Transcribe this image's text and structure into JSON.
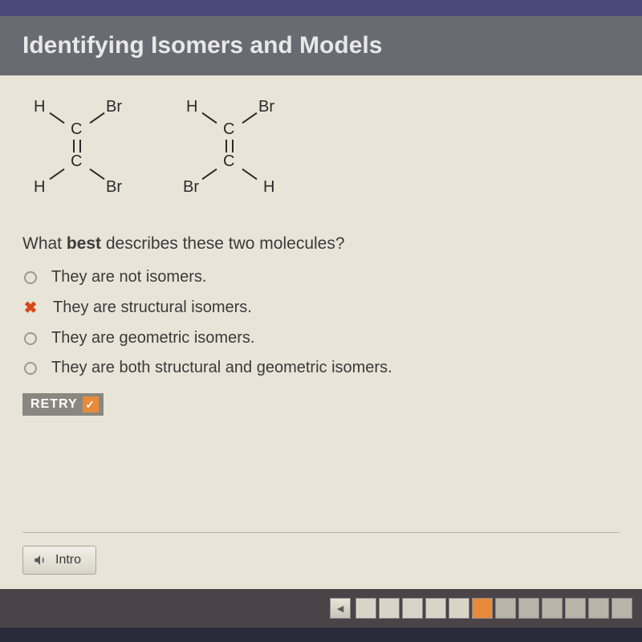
{
  "header": {
    "title": "Identifying Isomers and Models"
  },
  "molecules": [
    {
      "top_left": "H",
      "top_right": "Br",
      "c_top": "C",
      "c_bottom": "C",
      "bottom_left": "H",
      "bottom_right": "Br"
    },
    {
      "top_left": "H",
      "top_right": "Br",
      "c_top": "C",
      "c_bottom": "C",
      "bottom_left": "Br",
      "bottom_right": "H"
    }
  ],
  "question": {
    "prefix": "What ",
    "bold": "best",
    "suffix": " describes these two molecules?"
  },
  "options": [
    {
      "text": "They are not isomers.",
      "state": "unselected"
    },
    {
      "text": "They are structural isomers.",
      "state": "wrong"
    },
    {
      "text": "They are geometric isomers.",
      "state": "unselected"
    },
    {
      "text": "They are both structural and geometric isomers.",
      "state": "unselected"
    }
  ],
  "retry": {
    "label": "RETRY",
    "check": "✓"
  },
  "intro": {
    "label": "Intro"
  },
  "progress": {
    "total": 12,
    "active_index": 5,
    "completed_count": 5
  },
  "colors": {
    "accent": "#e88a3a",
    "wrong": "#d94a1a",
    "header_bg": "#6a6a72",
    "content_bg": "#e8e5d8",
    "footer_bg": "#4a4448"
  }
}
